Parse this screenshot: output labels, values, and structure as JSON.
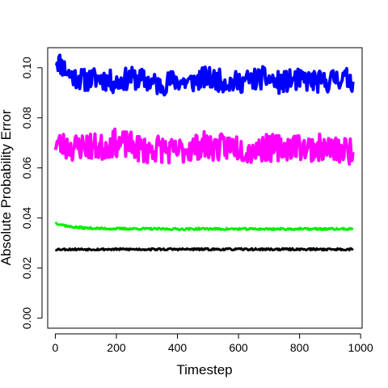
{
  "chart_data": {
    "type": "line",
    "title": "",
    "xlabel": "Timestep",
    "ylabel": "Absolute Probability Error",
    "xlim": [
      -25,
      1005
    ],
    "ylim": [
      -0.004,
      0.108
    ],
    "x_ticks": [
      0,
      200,
      400,
      600,
      800,
      1000
    ],
    "y_ticks": [
      0.0,
      0.02,
      0.04,
      0.06,
      0.08,
      0.1
    ],
    "x_tick_labels": [
      "0",
      "200",
      "400",
      "600",
      "800",
      "1000"
    ],
    "y_tick_labels": [
      "0.00",
      "0.02",
      "0.04",
      "0.06",
      "0.08",
      "0.10"
    ],
    "grid": false,
    "legend": "none",
    "x_range": [
      0,
      975
    ],
    "series": [
      {
        "color": "#0000ff",
        "line_width": 4,
        "noise_seed": 11,
        "noise_amplitude": 0.0045,
        "values": [
          0.104,
          0.097,
          0.095,
          0.096,
          0.094,
          0.096,
          0.095,
          0.093,
          0.095,
          0.094,
          0.096,
          0.095,
          0.094,
          0.095,
          0.096,
          0.094,
          0.095,
          0.095,
          0.094,
          0.096,
          0.095
        ]
      },
      {
        "color": "#ff00ff",
        "line_width": 4,
        "noise_seed": 23,
        "noise_amplitude": 0.0055,
        "values": [
          0.07,
          0.068,
          0.069,
          0.068,
          0.07,
          0.069,
          0.067,
          0.068,
          0.066,
          0.068,
          0.069,
          0.068,
          0.069,
          0.067,
          0.068,
          0.068,
          0.069,
          0.068,
          0.068,
          0.067,
          0.067
        ]
      },
      {
        "color": "#00ee00",
        "line_width": 3,
        "noise_seed": 37,
        "noise_amplitude": 0.0004,
        "values": [
          0.038,
          0.0365,
          0.036,
          0.0358,
          0.0357,
          0.0357,
          0.0357,
          0.0356,
          0.0356,
          0.0356,
          0.0357,
          0.0356,
          0.0356,
          0.0356,
          0.0356,
          0.0356,
          0.0356,
          0.0356,
          0.0356,
          0.0356,
          0.0356
        ]
      },
      {
        "color": "#000000",
        "line_width": 3,
        "noise_seed": 53,
        "noise_amplitude": 0.0004,
        "values": [
          0.0275,
          0.0275,
          0.0275,
          0.0275,
          0.0275,
          0.0275,
          0.0275,
          0.0275,
          0.0275,
          0.0275,
          0.0275,
          0.0275,
          0.0275,
          0.0275,
          0.0275,
          0.0275,
          0.0275,
          0.0275,
          0.0275,
          0.0275,
          0.0275
        ]
      }
    ]
  }
}
